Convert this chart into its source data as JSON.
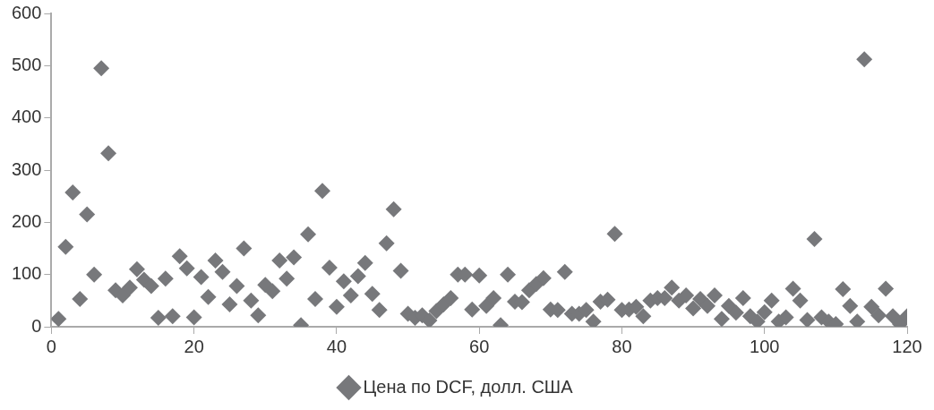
{
  "chart_data": {
    "type": "scatter",
    "x": [
      1,
      2,
      3,
      4,
      5,
      6,
      7,
      8,
      9,
      10,
      11,
      12,
      13,
      14,
      15,
      16,
      17,
      18,
      19,
      20,
      21,
      22,
      23,
      24,
      25,
      26,
      27,
      28,
      29,
      30,
      31,
      32,
      33,
      34,
      35,
      36,
      37,
      38,
      39,
      40,
      41,
      42,
      43,
      44,
      45,
      46,
      47,
      48,
      49,
      50,
      51,
      52,
      53,
      54,
      55,
      56,
      57,
      58,
      59,
      60,
      61,
      62,
      63,
      64,
      65,
      66,
      67,
      68,
      69,
      70,
      71,
      72,
      73,
      74,
      75,
      76,
      77,
      78,
      79,
      80,
      81,
      82,
      83,
      84,
      85,
      86,
      87,
      88,
      89,
      90,
      91,
      92,
      93,
      94,
      95,
      96,
      97,
      98,
      99,
      100,
      101,
      102,
      103,
      104,
      105,
      106,
      107,
      108,
      109,
      110,
      111,
      112,
      113,
      114,
      115,
      116,
      117,
      118,
      119,
      120
    ],
    "series": [
      {
        "name": "Цена по DCF, долл. США",
        "color": "#77787b",
        "values": [
          15,
          153,
          257,
          53,
          215,
          100,
          495,
          332,
          70,
          60,
          75,
          110,
          90,
          78,
          17,
          92,
          20,
          135,
          112,
          18,
          95,
          57,
          127,
          105,
          43,
          78,
          150,
          50,
          22,
          80,
          68,
          127,
          92,
          133,
          3,
          177,
          53,
          260,
          113,
          38,
          87,
          60,
          97,
          122,
          63,
          32,
          160,
          225,
          107,
          25,
          17,
          22,
          12,
          30,
          43,
          55,
          100,
          100,
          33,
          98,
          40,
          55,
          3,
          100,
          48,
          47,
          70,
          82,
          93,
          33,
          32,
          105,
          25,
          25,
          32,
          10,
          48,
          52,
          178,
          32,
          33,
          38,
          20,
          50,
          55,
          55,
          75,
          50,
          60,
          35,
          53,
          40,
          60,
          15,
          40,
          27,
          55,
          20,
          10,
          28,
          50,
          10,
          18,
          73,
          50,
          13,
          168,
          18,
          10,
          5,
          72,
          40,
          10,
          512,
          38,
          22,
          73,
          20,
          5,
          20
        ]
      }
    ],
    "xlim": [
      0,
      120
    ],
    "xticks": [
      0,
      20,
      40,
      60,
      80,
      100,
      120
    ],
    "ylim": [
      0,
      600
    ],
    "yticks": [
      0,
      100,
      200,
      300,
      400,
      500,
      600
    ],
    "grid": false,
    "legend": "bottom",
    "marker": "diamond"
  }
}
